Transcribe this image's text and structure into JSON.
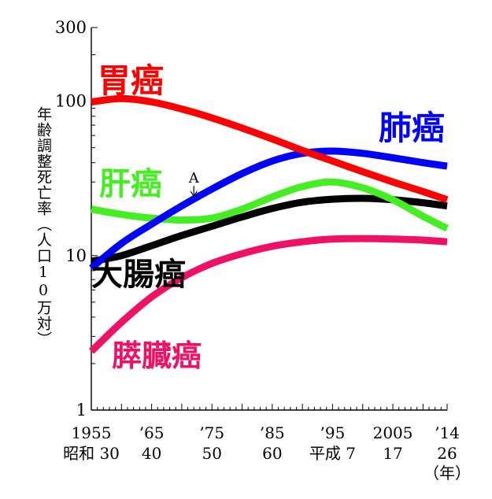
{
  "chart_data": {
    "type": "line",
    "y_scale": "log",
    "ylim": [
      1,
      300
    ],
    "xlim": [
      1955,
      2014
    ],
    "ylabel": "年齢調整死亡率（人口10万対）",
    "y_ticks": [
      {
        "value": 1,
        "label": "1"
      },
      {
        "value": 10,
        "label": "10"
      },
      {
        "value": 100,
        "label": "100"
      },
      {
        "value": 300,
        "label": "300"
      }
    ],
    "x_ticks": [
      {
        "value": 1955,
        "label1": "1955",
        "label2": "昭和 30"
      },
      {
        "value": 1965,
        "label1": "’65",
        "label2": "40"
      },
      {
        "value": 1975,
        "label1": "’75",
        "label2": "50"
      },
      {
        "value": 1985,
        "label1": "’85",
        "label2": "60"
      },
      {
        "value": 1995,
        "label1": "’95",
        "label2": "平成 7"
      },
      {
        "value": 2005,
        "label1": "2005",
        "label2": "17"
      },
      {
        "value": 2014,
        "label1": "’14",
        "label2": "26"
      }
    ],
    "x_unit": "（年）",
    "annotation": {
      "label": "A",
      "x": 1972,
      "y": 24
    },
    "series": [
      {
        "name": "胃癌",
        "color": "#ff0000",
        "x": [
          1955,
          1960,
          1965,
          1970,
          1975,
          1980,
          1985,
          1990,
          1995,
          2000,
          2005,
          2010,
          2014
        ],
        "y": [
          99,
          104,
          99,
          89,
          78,
          67,
          57,
          48,
          41,
          35,
          30,
          26,
          23
        ]
      },
      {
        "name": "肺癌",
        "color": "#0000ff",
        "x": [
          1955,
          1960,
          1965,
          1970,
          1975,
          1980,
          1985,
          1990,
          1995,
          2000,
          2005,
          2010,
          2014
        ],
        "y": [
          8.3,
          12,
          16,
          21,
          27,
          34,
          41,
          46,
          47.5,
          46,
          43,
          40,
          38
        ]
      },
      {
        "name": "肝癌",
        "color": "#44ee22",
        "x": [
          1955,
          1960,
          1965,
          1970,
          1975,
          1980,
          1985,
          1990,
          1995,
          2000,
          2005,
          2010,
          2014
        ],
        "y": [
          20,
          18.5,
          17.5,
          17,
          17.5,
          20,
          24,
          28,
          30,
          27.5,
          23,
          18,
          15
        ]
      },
      {
        "name": "大腸癌",
        "color": "#000000",
        "x": [
          1955,
          1960,
          1965,
          1970,
          1975,
          1980,
          1985,
          1990,
          1995,
          2000,
          2005,
          2010,
          2014
        ],
        "y": [
          9.2,
          10,
          11.6,
          13.5,
          15.5,
          17.8,
          20.2,
          22.2,
          23.2,
          23.5,
          23,
          22,
          21
        ]
      },
      {
        "name": "膵臓癌",
        "color": "#ee1166",
        "x": [
          1955,
          1960,
          1965,
          1970,
          1975,
          1980,
          1985,
          1990,
          1995,
          2000,
          2005,
          2010,
          2014
        ],
        "y": [
          2.4,
          3.7,
          5.4,
          7.2,
          8.9,
          10.3,
          11.5,
          12.3,
          12.8,
          12.9,
          12.8,
          12.6,
          12.3
        ]
      }
    ]
  }
}
